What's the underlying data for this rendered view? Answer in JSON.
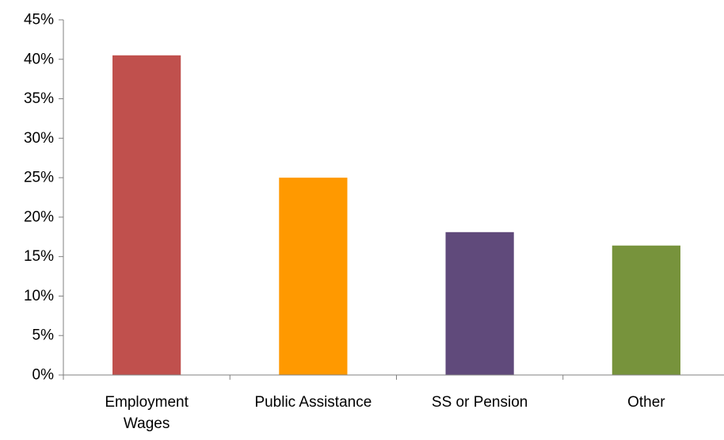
{
  "chart_data": {
    "type": "bar",
    "title": "",
    "xlabel": "",
    "ylabel": "",
    "categories": [
      "Employment Wages",
      "Public Assistance",
      "SS or Pension",
      "Other"
    ],
    "category_lines": [
      [
        "Employment",
        "Wages"
      ],
      [
        "Public Assistance"
      ],
      [
        "SS or Pension"
      ],
      [
        "Other"
      ]
    ],
    "values": [
      40.5,
      25.0,
      18.1,
      16.4
    ],
    "colors": [
      "#C0504D",
      "#FF9900",
      "#604A7B",
      "#77933C"
    ],
    "ylim": [
      0,
      45
    ],
    "ytick_values": [
      0,
      5,
      10,
      15,
      20,
      25,
      30,
      35,
      40,
      45
    ],
    "ytick_labels": [
      "0%",
      "5%",
      "10%",
      "15%",
      "20%",
      "25%",
      "30%",
      "35%",
      "40%",
      "45%"
    ],
    "grid": false,
    "legend": "none"
  }
}
